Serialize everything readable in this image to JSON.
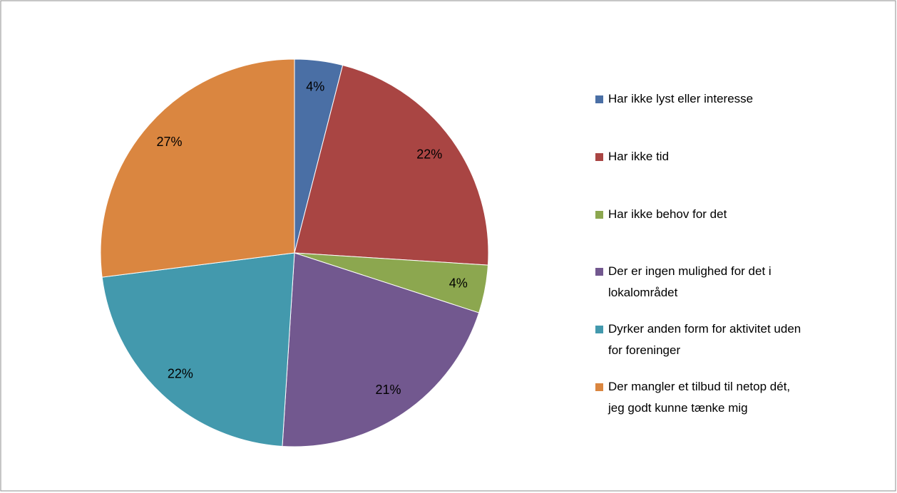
{
  "chart_data": {
    "type": "pie",
    "categories": [
      "Har ikke lyst eller interesse",
      "Har ikke tid",
      "Har ikke behov for det",
      "Der er ingen mulighed for det i lokalområdet",
      "Dyrker anden form for aktivitet uden for foreninger",
      "Der mangler et tilbud til netop dét, jeg godt kunne tænke mig"
    ],
    "values": [
      4,
      22,
      4,
      21,
      22,
      27
    ],
    "value_labels": [
      "4%",
      "22%",
      "4%",
      "21%",
      "22%",
      "27%"
    ],
    "colors": [
      "#4a6fa5",
      "#a94543",
      "#8ca74f",
      "#72588f",
      "#4399ad",
      "#da8640"
    ],
    "legend": "right"
  }
}
